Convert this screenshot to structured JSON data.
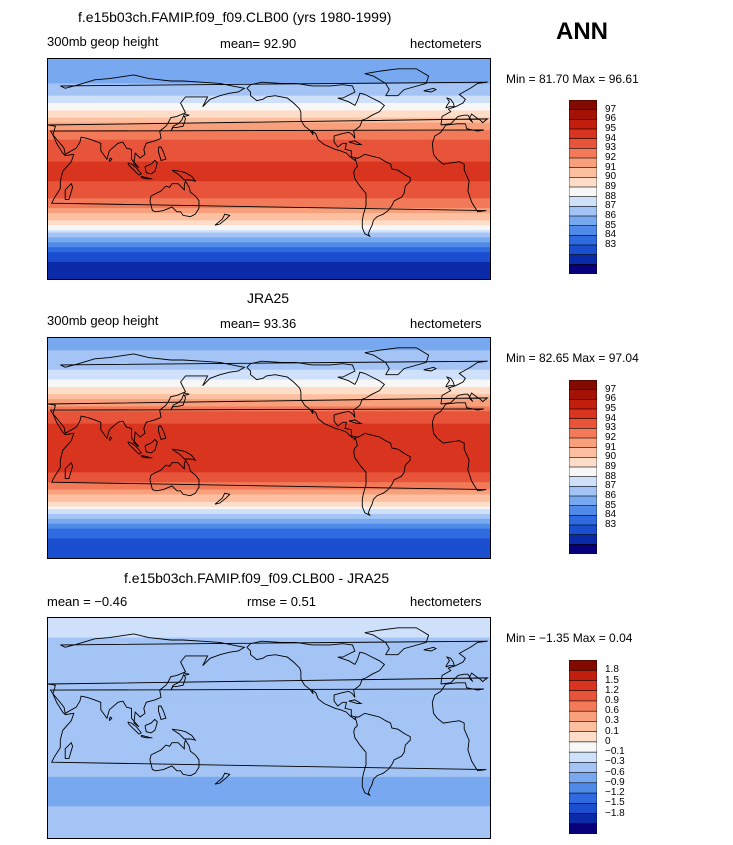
{
  "season": "ANN",
  "colors": {
    "abs_palette": [
      "#08007a",
      "#0a2aa8",
      "#1b4fd0",
      "#2f6ae0",
      "#4f8ae8",
      "#78a8f0",
      "#a3c4f5",
      "#cfe0fa",
      "#f7f7f7",
      "#fddcc8",
      "#fcc0a0",
      "#f89f7c",
      "#f27a58",
      "#e8543a",
      "#d8341f",
      "#c21e0d",
      "#a31205",
      "#820a00"
    ],
    "diff_palette": [
      "#08007a",
      "#0a2aa8",
      "#1b4fd0",
      "#2f6ae0",
      "#4f8ae8",
      "#78a8f0",
      "#a3c4f5",
      "#cfe0fa",
      "#f7f7f7",
      "#fddcc8",
      "#fcc0a0",
      "#f89f7c",
      "#f27a58",
      "#e8543a",
      "#d8341f",
      "#c21e0d",
      "#820a00"
    ]
  },
  "panels": [
    {
      "title": "f.e15b03ch.FAMIP.f09_f09.CLB00 (yrs 1980-1999)",
      "left_label": "300mb geop height",
      "mean_text": "mean=  92.90",
      "units": "hectometers",
      "minmax": "Min =  81.70 Max =  96.61"
    },
    {
      "title": "JRA25",
      "left_label": "300mb geop height",
      "mean_text": "mean=  93.36",
      "units": "hectometers",
      "minmax": "Min =  82.65 Max =  97.04"
    },
    {
      "title": "f.e15b03ch.FAMIP.f09_f09.CLB00 - JRA25",
      "left_label": "mean =  −0.46",
      "mean_text": "rmse =   0.51",
      "units": "hectometers",
      "minmax": "Min =  −1.35 Max =   0.04"
    }
  ],
  "chart_data": [
    {
      "type": "heatmap",
      "title": "f.e15b03ch.FAMIP.f09_f09.CLB00 (yrs 1980-1999)",
      "variable": "300mb geop height",
      "units": "hectometers",
      "mean": 92.9,
      "min": 81.7,
      "max": 96.61,
      "x_range": [
        30,
        390
      ],
      "y_range": [
        -90,
        90
      ],
      "contour_levels": [
        "97",
        "96",
        "95",
        "94",
        "93",
        "92",
        "91",
        "90",
        "89",
        "88",
        "87",
        "86",
        "85",
        "84",
        "83"
      ],
      "zonal_profile": {
        "lat": [
          90,
          75,
          60,
          45,
          30,
          20,
          10,
          0,
          -10,
          -20,
          -30,
          -45,
          -60,
          -70,
          -80,
          -90
        ],
        "value": [
          87.2,
          87.6,
          89.0,
          91.4,
          94.4,
          95.5,
          95.9,
          96.1,
          96.0,
          95.6,
          94.3,
          91.3,
          86.8,
          84.6,
          83.6,
          83.3
        ]
      }
    },
    {
      "type": "heatmap",
      "title": "JRA25",
      "variable": "300mb geop height",
      "units": "hectometers",
      "mean": 93.36,
      "min": 82.65,
      "max": 97.04,
      "x_range": [
        30,
        390
      ],
      "y_range": [
        -90,
        90
      ],
      "contour_levels": [
        "97",
        "96",
        "95",
        "94",
        "93",
        "92",
        "91",
        "90",
        "89",
        "88",
        "87",
        "86",
        "85",
        "84",
        "83"
      ],
      "zonal_profile": {
        "lat": [
          90,
          75,
          60,
          45,
          30,
          20,
          10,
          0,
          -10,
          -20,
          -30,
          -45,
          -60,
          -70,
          -80,
          -90
        ],
        "value": [
          87.8,
          88.1,
          89.4,
          91.8,
          94.9,
          96.0,
          96.5,
          96.7,
          96.5,
          96.0,
          94.7,
          91.6,
          87.3,
          85.3,
          84.4,
          84.0
        ]
      }
    },
    {
      "type": "heatmap",
      "title": "f.e15b03ch.FAMIP.f09_f09.CLB00 - JRA25",
      "units": "hectometers",
      "mean": -0.46,
      "rmse": 0.51,
      "min": -1.35,
      "max": 0.04,
      "x_range": [
        30,
        390
      ],
      "y_range": [
        -90,
        90
      ],
      "contour_levels": [
        "1.8",
        "1.5",
        "1.2",
        "0.9",
        "0.6",
        "0.3",
        "0.1",
        "0",
        "−0.1",
        "−0.3",
        "−0.6",
        "−0.9",
        "−1.2",
        "−1.5",
        "−1.8"
      ],
      "zonal_profile": {
        "lat": [
          90,
          75,
          60,
          45,
          30,
          15,
          0,
          -15,
          -30,
          -45,
          -55,
          -65,
          -75,
          -90
        ],
        "value": [
          -0.1,
          -0.3,
          -0.4,
          -0.4,
          -0.45,
          -0.45,
          -0.45,
          -0.45,
          -0.5,
          -0.65,
          -0.75,
          -0.6,
          -0.5,
          -0.45
        ]
      }
    }
  ]
}
